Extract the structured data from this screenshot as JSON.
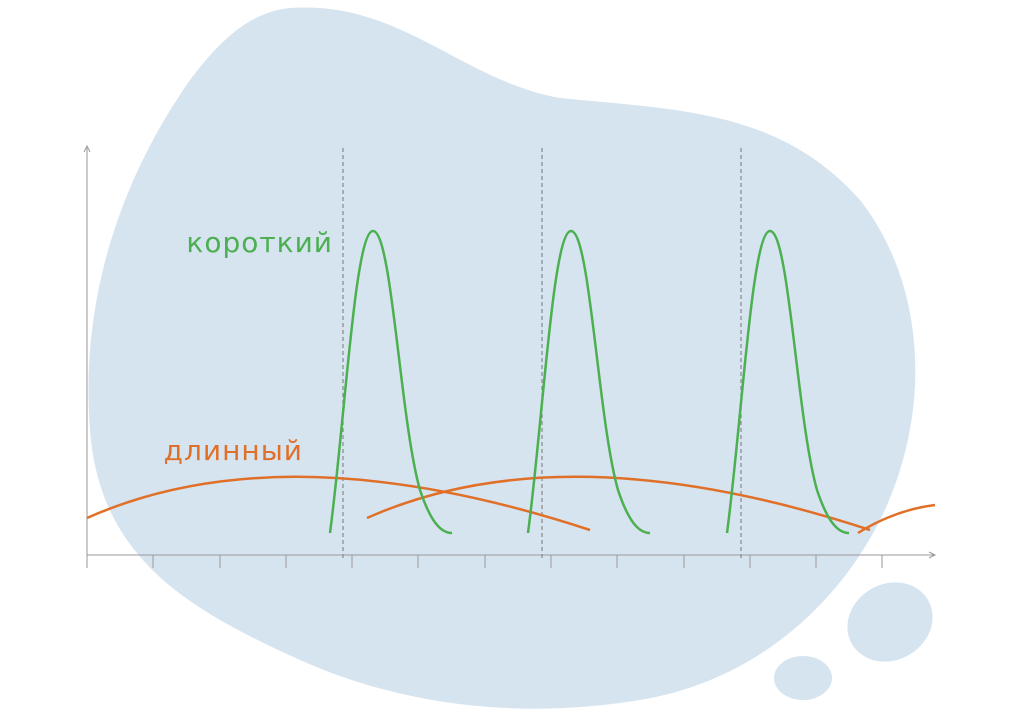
{
  "labels": {
    "short": "короткий",
    "long": "длинный"
  }
}
